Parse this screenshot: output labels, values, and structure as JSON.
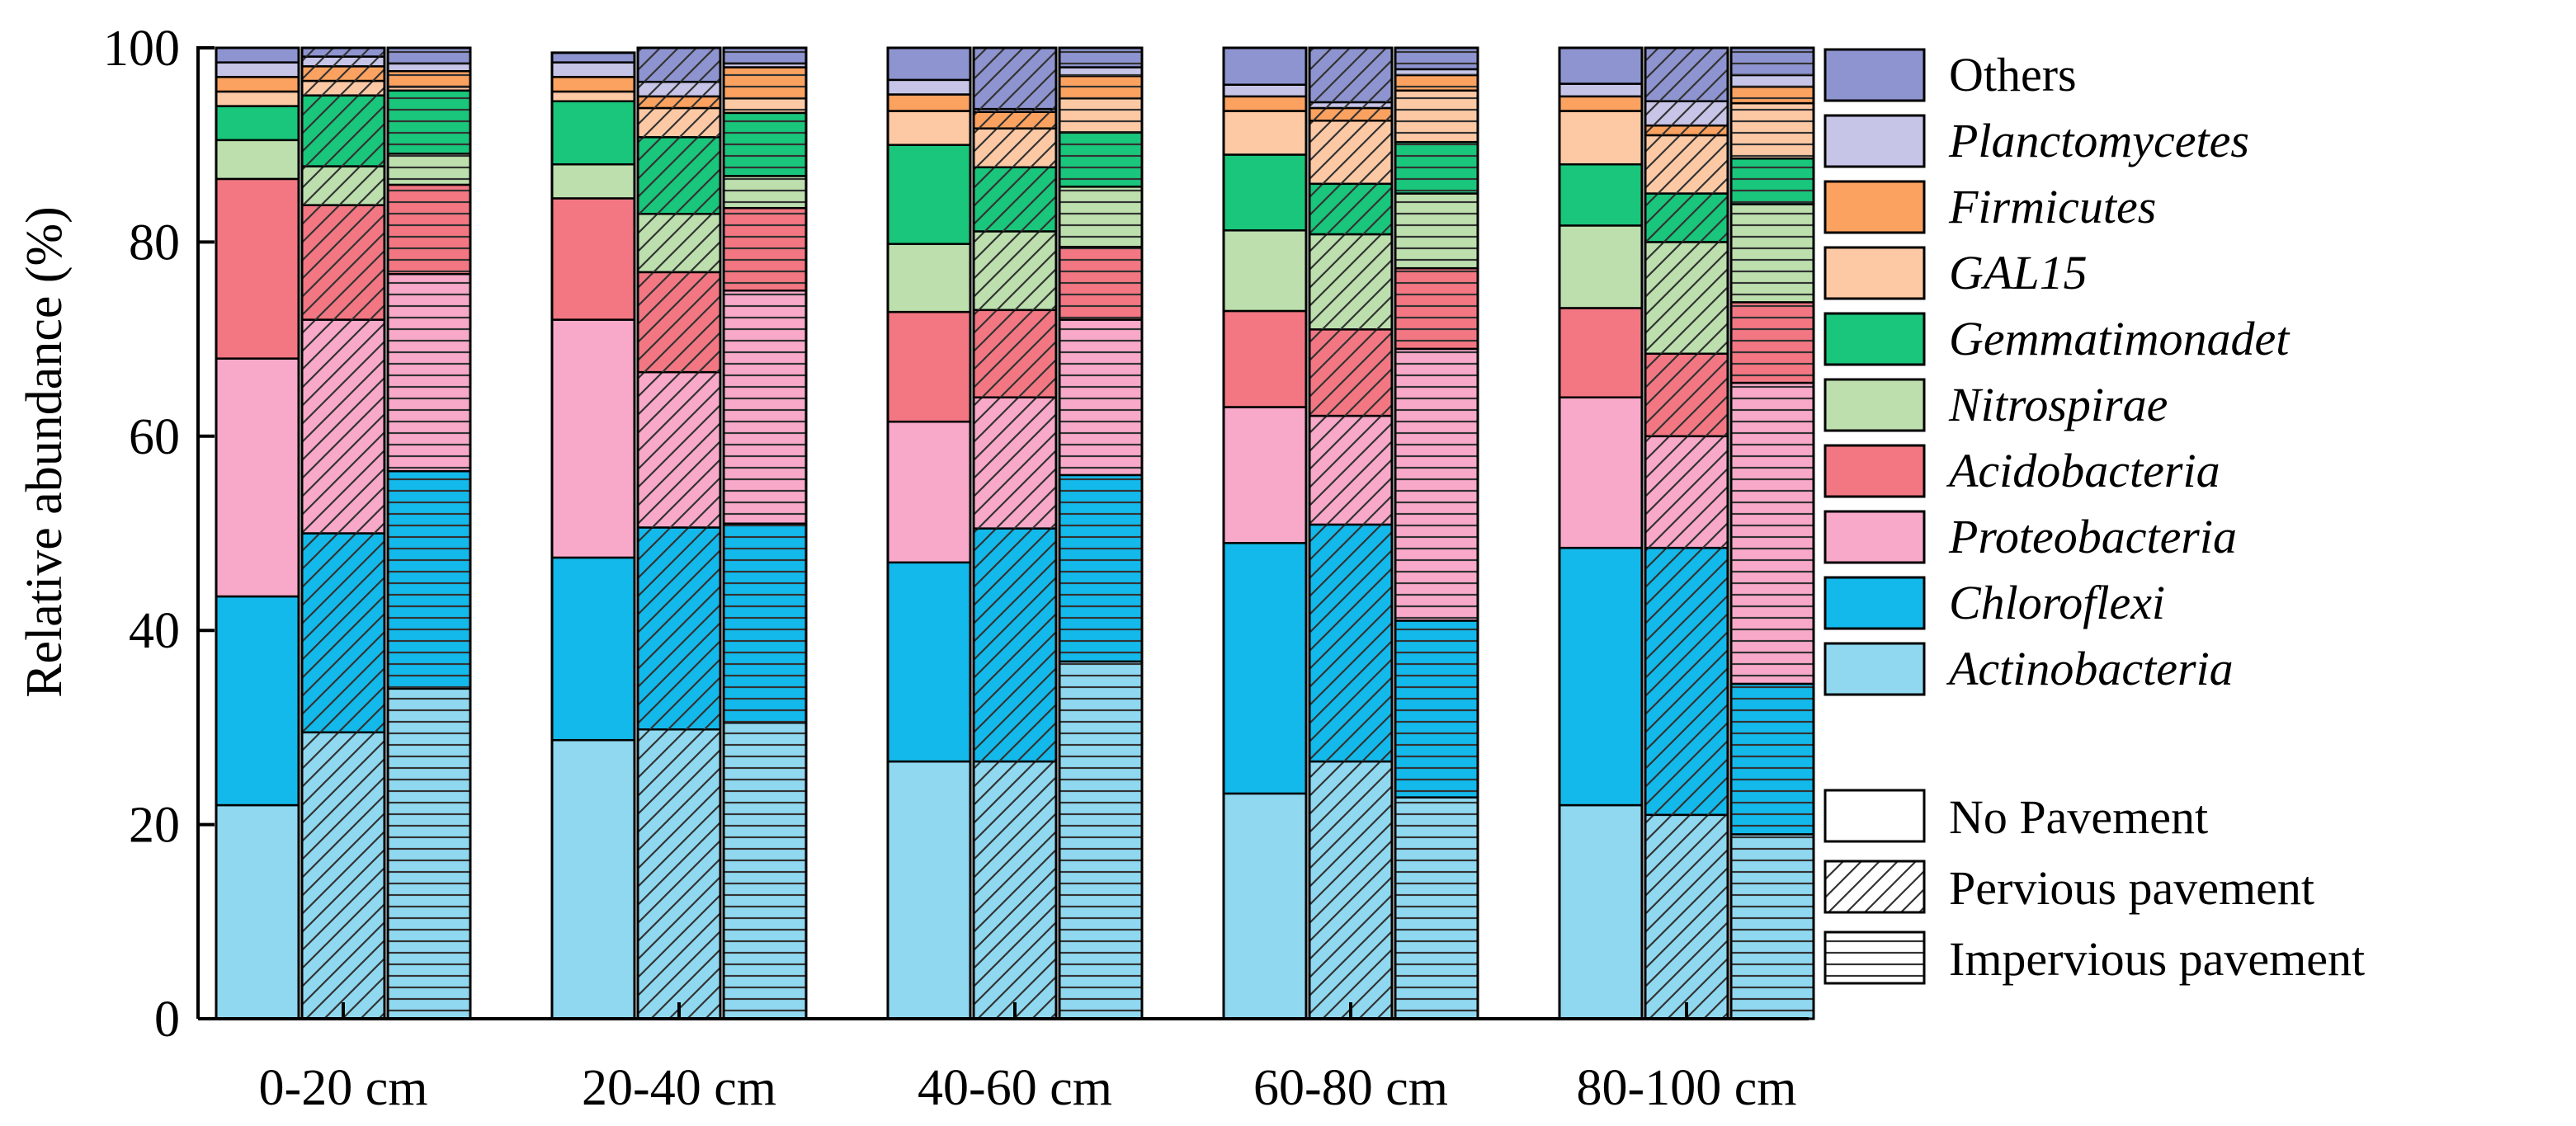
{
  "chart_data": {
    "type": "stacked-bar",
    "ylabel": "Relative abundance (%)",
    "ylim": [
      0,
      100
    ],
    "yticks": [
      0,
      20,
      40,
      60,
      80,
      100
    ],
    "groups": [
      "0-20 cm",
      "20-40 cm",
      "40-60 cm",
      "60-80 cm",
      "80-100 cm"
    ],
    "treatments": [
      {
        "name": "No Pavement",
        "pattern": "none"
      },
      {
        "name": "Pervious pavement",
        "pattern": "diagonal"
      },
      {
        "name": "Impervious pavement",
        "pattern": "horizontal"
      }
    ],
    "taxa": [
      {
        "name": "Actinobacteria",
        "color": "#8fd8f0",
        "italic": true
      },
      {
        "name": "Chloroflexi",
        "color": "#13b9ea",
        "italic": true
      },
      {
        "name": "Proteobacteria",
        "color": "#f8a8c8",
        "italic": true
      },
      {
        "name": "Acidobacteria",
        "color": "#f27782",
        "italic": true
      },
      {
        "name": "Nitrospirae",
        "color": "#bcdfad",
        "italic": true
      },
      {
        "name": "Gemmatimonadet",
        "color": "#19c67b",
        "italic": true
      },
      {
        "name": "GAL15",
        "color": "#fdc9a4",
        "italic": true
      },
      {
        "name": "Firmicutes",
        "color": "#fba260",
        "italic": true
      },
      {
        "name": "Planctomycetes",
        "color": "#c6c4e7",
        "italic": true
      },
      {
        "name": "Others",
        "color": "#8e94cf",
        "italic": false
      }
    ],
    "series_values": [
      [
        [
          22,
          21.5,
          24.5,
          18.5,
          4,
          3.5,
          1.5,
          1.5,
          1.5,
          2.5
        ],
        [
          29.5,
          20.5,
          22,
          11.8,
          4,
          7.3,
          1.5,
          1.5,
          1,
          1.4
        ],
        [
          34,
          22.4,
          20.3,
          9.2,
          3.2,
          6.5,
          0.4,
          1.6,
          0.8,
          1.6
        ]
      ],
      [
        [
          28.7,
          18.8,
          24.5,
          12.5,
          3.5,
          6.5,
          1,
          1.5,
          1.5,
          1
        ],
        [
          29.8,
          20.8,
          16,
          10.3,
          6,
          7.9,
          3,
          1.2,
          1.5,
          3.5
        ],
        [
          30.5,
          20.5,
          24,
          8.5,
          3.3,
          6.5,
          1.5,
          3.2,
          0.4,
          1.6
        ]
      ],
      [
        [
          26.5,
          20.5,
          14.5,
          11.3,
          7,
          10.2,
          3.5,
          1.7,
          1.5,
          3.3
        ],
        [
          26.5,
          24,
          13.5,
          9,
          8.1,
          6.6,
          4,
          1.7,
          0.3,
          6.3
        ],
        [
          36.8,
          19.2,
          16,
          7.5,
          6.2,
          5.6,
          3.5,
          2.3,
          0.9,
          2
        ]
      ],
      [
        [
          23.2,
          25.8,
          14,
          9.9,
          8.3,
          7.8,
          4.5,
          1.5,
          1.2,
          3.8
        ],
        [
          26.5,
          24.4,
          11.2,
          8.9,
          9.8,
          5.2,
          6.5,
          1.3,
          0.6,
          5.6
        ],
        [
          22.8,
          18.2,
          28,
          8.3,
          7.7,
          5.3,
          5.3,
          1.6,
          0.6,
          2.2
        ]
      ],
      [
        [
          22,
          26.5,
          15.5,
          9.2,
          8.5,
          6.3,
          5.5,
          1.5,
          1.3,
          3.7
        ],
        [
          21,
          27.5,
          11.5,
          8.5,
          11.5,
          5,
          6,
          1,
          2.5,
          5.5
        ],
        [
          19,
          15.5,
          31,
          8.3,
          10.1,
          4.7,
          5.7,
          1.7,
          1.2,
          2.8
        ]
      ]
    ]
  }
}
